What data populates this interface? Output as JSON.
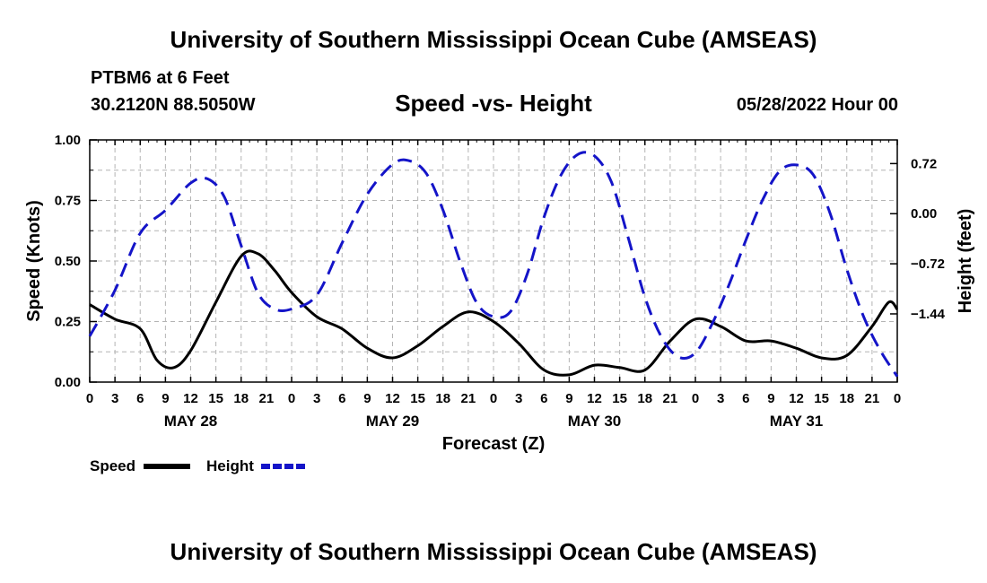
{
  "header": {
    "title": "University of Southern Mississippi Ocean Cube (AMSEAS)",
    "station": "PTBM6 at 6 Feet",
    "location": "30.2120N  88.5050W",
    "chart_title": "Speed -vs- Height",
    "datetime": "05/28/2022 Hour 00"
  },
  "footer": {
    "title": "University of Southern Mississippi Ocean Cube (AMSEAS)"
  },
  "legend": {
    "speed_label": "Speed",
    "height_label": "Height"
  },
  "colors": {
    "speed": "#000000",
    "height": "#1414c8",
    "grid": "#b4b4b4"
  },
  "chart_data": {
    "type": "line",
    "title": "Speed -vs- Height",
    "xlabel": "Forecast (Z)",
    "ylabel": "Speed (Knots)",
    "y2label": "Height (feet)",
    "xlim": [
      0,
      96
    ],
    "ylim": [
      0,
      1.0
    ],
    "y2lim": [
      -2.42,
      1.06
    ],
    "x_ticks": [
      0,
      3,
      6,
      9,
      12,
      15,
      18,
      21,
      24,
      27,
      30,
      33,
      36,
      39,
      42,
      45,
      48,
      51,
      54,
      57,
      60,
      63,
      66,
      69,
      72,
      75,
      78,
      81,
      84,
      87,
      90,
      93,
      96
    ],
    "x_tick_labels": [
      "0",
      "3",
      "6",
      "9",
      "12",
      "15",
      "18",
      "21",
      "0",
      "3",
      "6",
      "9",
      "12",
      "15",
      "18",
      "21",
      "0",
      "3",
      "6",
      "9",
      "12",
      "15",
      "18",
      "21",
      "0",
      "3",
      "6",
      "9",
      "12",
      "15",
      "18",
      "21",
      "0"
    ],
    "y_ticks": [
      0,
      0.25,
      0.5,
      0.75,
      1.0
    ],
    "y_tick_labels": [
      "0.00",
      "0.25",
      "0.50",
      "0.75",
      "1.00"
    ],
    "y2_ticks": [
      -1.44,
      -0.72,
      0.0,
      0.72
    ],
    "y2_tick_labels": [
      "−1.44",
      "−0.72",
      "0.00",
      "0.72"
    ],
    "day_labels": [
      {
        "x": 12,
        "label": "MAY 28"
      },
      {
        "x": 36,
        "label": "MAY 29"
      },
      {
        "x": 60,
        "label": "MAY 30"
      },
      {
        "x": 84,
        "label": "MAY 31"
      }
    ],
    "grid": true,
    "series": [
      {
        "name": "Speed",
        "axis": "left",
        "style": "solid",
        "x": [
          0,
          3,
          6,
          8,
          10,
          12,
          15,
          18,
          20,
          22,
          24,
          27,
          30,
          33,
          36,
          39,
          42,
          45,
          48,
          51,
          54,
          57,
          60,
          63,
          66,
          69,
          72,
          75,
          78,
          81,
          84,
          87,
          90,
          93,
          95,
          96
        ],
        "values": [
          0.32,
          0.26,
          0.22,
          0.09,
          0.06,
          0.13,
          0.33,
          0.52,
          0.53,
          0.46,
          0.37,
          0.27,
          0.22,
          0.14,
          0.1,
          0.15,
          0.23,
          0.29,
          0.25,
          0.16,
          0.05,
          0.03,
          0.07,
          0.06,
          0.05,
          0.17,
          0.26,
          0.23,
          0.17,
          0.17,
          0.14,
          0.1,
          0.11,
          0.23,
          0.33,
          0.3
        ]
      },
      {
        "name": "Height",
        "axis": "right",
        "style": "dashed",
        "x": [
          0,
          3,
          6,
          9,
          12,
          14,
          16,
          18,
          20,
          22,
          24,
          27,
          30,
          33,
          36,
          38,
          40,
          42,
          44,
          46,
          48,
          50,
          52,
          54,
          56,
          58,
          60,
          62,
          64,
          66,
          68,
          70,
          72,
          74,
          76,
          78,
          80,
          82,
          84,
          86,
          88,
          90,
          92,
          94,
          96
        ],
        "values": [
          -1.76,
          -1.1,
          -0.28,
          0.05,
          0.44,
          0.5,
          0.24,
          -0.46,
          -1.14,
          -1.37,
          -1.37,
          -1.17,
          -0.42,
          0.28,
          0.71,
          0.76,
          0.58,
          0.05,
          -0.68,
          -1.28,
          -1.48,
          -1.41,
          -0.87,
          -0.05,
          0.55,
          0.85,
          0.83,
          0.46,
          -0.34,
          -1.2,
          -1.78,
          -2.06,
          -2.0,
          -1.58,
          -1.02,
          -0.38,
          0.2,
          0.61,
          0.7,
          0.56,
          0.01,
          -0.8,
          -1.48,
          -1.97,
          -2.34
        ]
      }
    ]
  }
}
